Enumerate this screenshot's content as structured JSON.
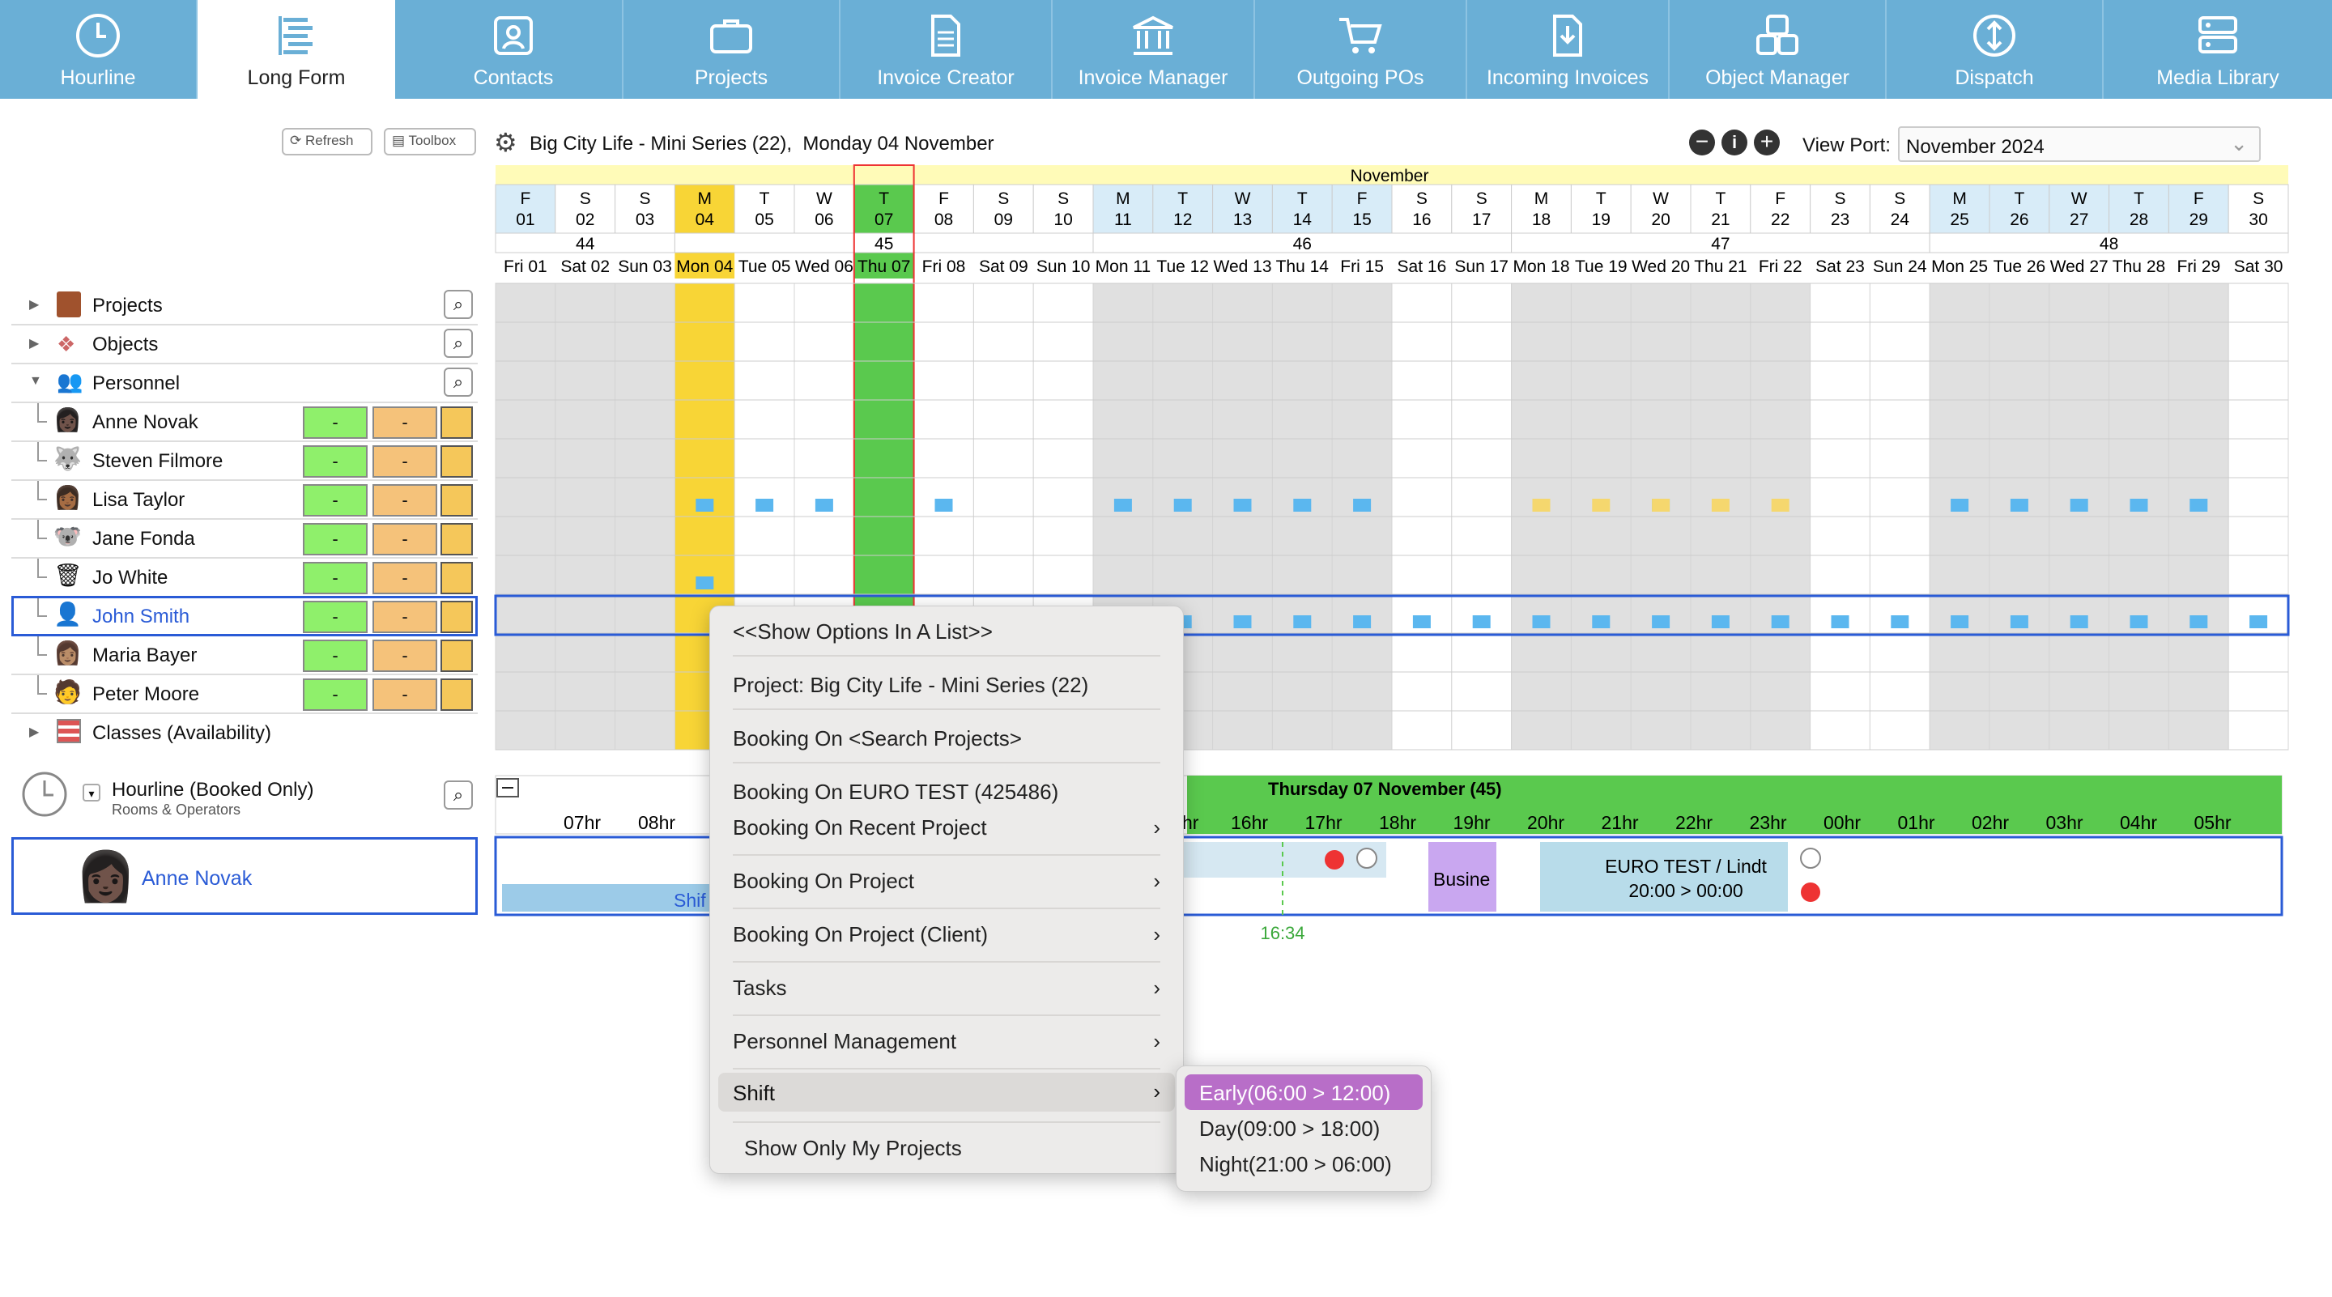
{
  "nav": {
    "tabs": [
      {
        "label": "Hourline",
        "icon": "clock-icon"
      },
      {
        "label": "Long Form",
        "icon": "list-icon"
      },
      {
        "label": "Contacts",
        "icon": "contact-card-icon"
      },
      {
        "label": "Projects",
        "icon": "briefcase-icon"
      },
      {
        "label": "Invoice Creator",
        "icon": "document-icon"
      },
      {
        "label": "Invoice Manager",
        "icon": "bank-icon"
      },
      {
        "label": "Outgoing POs",
        "icon": "cart-icon"
      },
      {
        "label": "Incoming Invoices",
        "icon": "download-doc-icon"
      },
      {
        "label": "Object Manager",
        "icon": "objects-icon"
      },
      {
        "label": "Dispatch",
        "icon": "dispatch-icon"
      },
      {
        "label": "Media Library",
        "icon": "server-icon"
      }
    ],
    "active": "Long Form"
  },
  "toolbar": {
    "refresh": "Refresh",
    "toolbox": "Toolbox",
    "context_title": "Big City Life - Mini Series (22),  Monday 04 November",
    "viewport_label": "View Port:",
    "viewport_value": "November 2024"
  },
  "calendar": {
    "month": "November",
    "letters": [
      "F",
      "S",
      "S",
      "M",
      "T",
      "W",
      "T",
      "F",
      "S",
      "S",
      "M",
      "T",
      "W",
      "T",
      "F",
      "S",
      "S",
      "M",
      "T",
      "W",
      "T",
      "F",
      "S",
      "S",
      "M",
      "T",
      "W",
      "T",
      "F",
      "S"
    ],
    "weeks": [
      {
        "label": "44"
      },
      {
        "label": "45"
      },
      {
        "label": "46"
      },
      {
        "label": "47"
      },
      {
        "label": "48"
      }
    ],
    "days": [
      "Fri 01",
      "Sat 02",
      "Sun 03",
      "Mon 04",
      "Tue 05",
      "Wed 06",
      "Thu 07",
      "Fri 08",
      "Sat 09",
      "Sun 10",
      "Mon 11",
      "Tue 12",
      "Wed 13",
      "Thu 14",
      "Fri 15",
      "Sat 16",
      "Sun 17",
      "Mon 18",
      "Tue 19",
      "Wed 20",
      "Thu 21",
      "Fri 22",
      "Sat 23",
      "Sun 24",
      "Mon 25",
      "Tue 26",
      "Wed 27",
      "Thu 28",
      "Fri 29",
      "Sat 30"
    ],
    "nums": [
      "01",
      "02",
      "03",
      "04",
      "05",
      "06",
      "07",
      "08",
      "09",
      "10",
      "11",
      "12",
      "13",
      "14",
      "15",
      "16",
      "17",
      "18",
      "19",
      "20",
      "21",
      "22",
      "23",
      "24",
      "25",
      "26",
      "27",
      "28",
      "29",
      "30"
    ]
  },
  "tree": {
    "projects": "Projects",
    "objects": "Objects",
    "personnel": "Personnel",
    "people": [
      "Anne Novak",
      "Steven Filmore",
      "Lisa Taylor",
      "Jane Fonda",
      "Jo White",
      "John Smith",
      "Maria Bayer",
      "Peter Moore"
    ],
    "classes": "Classes (Availability)",
    "dash": "-"
  },
  "hourline": {
    "title": "Hourline (Booked Only)",
    "subtitle": "Rooms & Operators",
    "person": "Anne Novak",
    "day_header": "Thursday 07 November (45)",
    "hours_left": [
      "07hr",
      "08hr"
    ],
    "hours_right": [
      "16hr",
      "17hr",
      "18hr",
      "19hr",
      "20hr",
      "21hr",
      "22hr",
      "23hr",
      "00hr",
      "01hr",
      "02hr",
      "03hr",
      "04hr",
      "05hr"
    ],
    "hr_partial": "hr",
    "now": "16:34",
    "shift_stub": "Shif",
    "business_stub": "Busine",
    "booking_title": "EURO TEST / Lindt",
    "booking_time": "20:00 > 00:00"
  },
  "context_menu": {
    "items": [
      "<<Show Options In A List>>",
      "Project: Big City Life - Mini Series (22)",
      "Booking On <Search Projects>",
      "Booking On EURO TEST (425486)",
      "Booking On Recent Project",
      "Booking On Project",
      "Booking On Project (Client)",
      "Tasks",
      "Personnel Management",
      "Shift",
      "Show Only My Projects"
    ],
    "submenu": [
      "Early(06:00 > 12:00)",
      "Day(09:00 > 18:00)",
      "Night(21:00 > 06:00)"
    ],
    "submenu_highlight": "#b86ec8"
  },
  "colors": {
    "nav": "#6aafd6",
    "today": "#5ac94e",
    "selected_day": "#f8d536",
    "bar": "#5bb7ef"
  }
}
